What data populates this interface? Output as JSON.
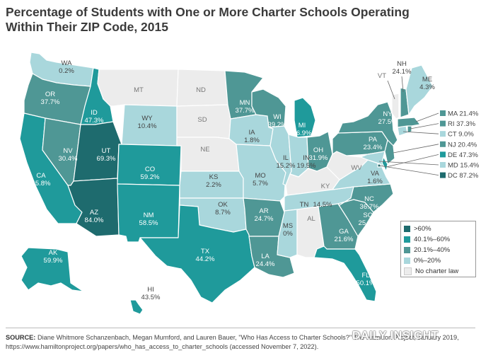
{
  "title": {
    "line1": "Percentage of Students with One or More Charter Schools Operating",
    "line2": "Within Their ZIP Code, 2015"
  },
  "colors": {
    "gt60": "#1e6b6e",
    "c40_60": "#1f9a9b",
    "c20_40": "#4f9795",
    "c0_20": "#a9d7dc",
    "none": "#ececec"
  },
  "legend": [
    {
      "key": "gt60",
      "label": ">60%"
    },
    {
      "key": "c40_60",
      "label": "40.1%–60%"
    },
    {
      "key": "c20_40",
      "label": "20.1%–40%"
    },
    {
      "key": "c0_20",
      "label": "0%–20%"
    },
    {
      "key": "none",
      "label": "No charter law"
    }
  ],
  "states": {
    "WA": {
      "name": "WA",
      "value": "0.2%",
      "cls": "c0_20"
    },
    "OR": {
      "name": "OR",
      "value": "37.7%",
      "cls": "c20_40"
    },
    "CA": {
      "name": "CA",
      "value": "45.8%",
      "cls": "c40_60"
    },
    "NV": {
      "name": "NV",
      "value": "30.4%",
      "cls": "c20_40"
    },
    "ID": {
      "name": "ID",
      "value": "47.3%",
      "cls": "c40_60"
    },
    "MT": {
      "name": "MT",
      "value": "",
      "cls": "none"
    },
    "WY": {
      "name": "WY",
      "value": "10.4%",
      "cls": "c0_20"
    },
    "UT": {
      "name": "UT",
      "value": "69.3%",
      "cls": "gt60"
    },
    "AZ": {
      "name": "AZ",
      "value": "84.0%",
      "cls": "gt60"
    },
    "CO": {
      "name": "CO",
      "value": "59.2%",
      "cls": "c40_60"
    },
    "NM": {
      "name": "NM",
      "value": "58.5%",
      "cls": "c40_60"
    },
    "ND": {
      "name": "ND",
      "value": "",
      "cls": "none"
    },
    "SD": {
      "name": "SD",
      "value": "",
      "cls": "none"
    },
    "NE": {
      "name": "NE",
      "value": "",
      "cls": "none"
    },
    "KS": {
      "name": "KS",
      "value": "2.2%",
      "cls": "c0_20"
    },
    "OK": {
      "name": "OK",
      "value": "8.7%",
      "cls": "c0_20"
    },
    "TX": {
      "name": "TX",
      "value": "44.2%",
      "cls": "c40_60"
    },
    "MN": {
      "name": "MN",
      "value": "37.7%",
      "cls": "c20_40"
    },
    "IA": {
      "name": "IA",
      "value": "1.8%",
      "cls": "c0_20"
    },
    "MO": {
      "name": "MO",
      "value": "5.7%",
      "cls": "c0_20"
    },
    "AR": {
      "name": "AR",
      "value": "24.7%",
      "cls": "c20_40"
    },
    "LA": {
      "name": "LA",
      "value": "24.4%",
      "cls": "c20_40"
    },
    "WI": {
      "name": "WI",
      "value": "39.2%",
      "cls": "c20_40"
    },
    "IL": {
      "name": "IL",
      "value": "15.2%",
      "cls": "c0_20"
    },
    "MI": {
      "name": "MI",
      "value": "46.9%",
      "cls": "c40_60"
    },
    "IN": {
      "name": "IN",
      "value": "19.5%",
      "cls": "c0_20"
    },
    "OH": {
      "name": "OH",
      "value": "31.9%",
      "cls": "c20_40"
    },
    "KY": {
      "name": "KY",
      "value": "",
      "cls": "none"
    },
    "TN": {
      "name": "TN",
      "value": "14.5%",
      "cls": "c0_20"
    },
    "MS": {
      "name": "MS",
      "value": "0%",
      "cls": "c0_20"
    },
    "AL": {
      "name": "AL",
      "value": "",
      "cls": "none"
    },
    "GA": {
      "name": "GA",
      "value": "21.6%",
      "cls": "c20_40"
    },
    "FL": {
      "name": "FL",
      "value": "50.1%",
      "cls": "c40_60"
    },
    "SC": {
      "name": "SC",
      "value": "25.4%",
      "cls": "c20_40"
    },
    "NC": {
      "name": "NC",
      "value": "36.7%",
      "cls": "c20_40"
    },
    "VA": {
      "name": "VA",
      "value": "1.6%",
      "cls": "c0_20"
    },
    "WV": {
      "name": "WV",
      "value": "",
      "cls": "none"
    },
    "PA": {
      "name": "PA",
      "value": "23.4%",
      "cls": "c20_40"
    },
    "NY": {
      "name": "NY",
      "value": "27.5%",
      "cls": "c20_40"
    },
    "VT": {
      "name": "VT",
      "value": "",
      "cls": "none"
    },
    "NH": {
      "name": "NH",
      "value": "24.1%",
      "cls": "c20_40"
    },
    "ME": {
      "name": "ME",
      "value": "4.3%",
      "cls": "c0_20"
    },
    "MA": {
      "name": "MA",
      "value": "21.4%",
      "cls": "c20_40"
    },
    "RI": {
      "name": "RI",
      "value": "37.3%",
      "cls": "c20_40"
    },
    "CT": {
      "name": "CT",
      "value": "9.0%",
      "cls": "c0_20"
    },
    "NJ": {
      "name": "NJ",
      "value": "20.4%",
      "cls": "c20_40"
    },
    "DE": {
      "name": "DE",
      "value": "47.3%",
      "cls": "c40_60"
    },
    "MD": {
      "name": "MD",
      "value": "15.4%",
      "cls": "c0_20"
    },
    "DC": {
      "name": "DC",
      "value": "87.2%",
      "cls": "gt60"
    },
    "AK": {
      "name": "AK",
      "value": "59.9%",
      "cls": "c40_60"
    },
    "HI": {
      "name": "HI",
      "value": "43.5%",
      "cls": "c40_60"
    }
  },
  "northeast_labels": [
    {
      "text": "MA 21.4%",
      "key": "MA"
    },
    {
      "text": "RI 37.3%",
      "key": "RI"
    },
    {
      "text": "CT 9.0%",
      "key": "CT"
    },
    {
      "text": "NJ 20.4%",
      "key": "NJ"
    },
    {
      "text": "DE 47.3%",
      "key": "DE"
    },
    {
      "text": "MD 15.4%",
      "key": "MD"
    },
    {
      "text": "DC 87.2%",
      "key": "DC"
    }
  ],
  "source": {
    "label": "SOURCE:",
    "line1": "Diane Whitmore Schanzenbach, Megan Mumford, and Lauren Bauer, \"Who Has Access to Charter Schools?\" The Hamilton Project, January 2019,",
    "line2": "https://www.hamiltonproject.org/papers/who_has_access_to_charter_schools (accessed November 7, 2022)."
  },
  "watermark": "DAILY INSIGHT"
}
